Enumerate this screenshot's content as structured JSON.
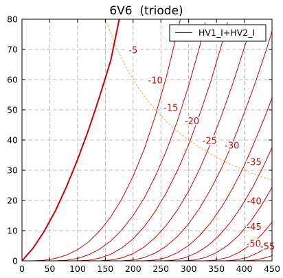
{
  "chart_data": {
    "type": "line",
    "title": "6V6  (triode)",
    "xlabel": "",
    "ylabel": "",
    "xlim": [
      0,
      450
    ],
    "ylim": [
      0,
      80
    ],
    "x_ticks": [
      0,
      50,
      100,
      150,
      200,
      250,
      300,
      350,
      400,
      450
    ],
    "y_ticks": [
      0,
      10,
      20,
      30,
      40,
      50,
      60,
      70,
      80
    ],
    "grid": true,
    "legend": {
      "placement": "top-right",
      "entries": [
        "HV1_I+HV2_I"
      ]
    },
    "colors": {
      "curve": "#cc0000",
      "label": "#cc0000",
      "dissipation": "#e8b040",
      "grid": "#aaaaaa",
      "axis": "#000000"
    },
    "series": [
      {
        "grid_voltage": "0",
        "points": [
          [
            0,
            0
          ],
          [
            20,
            4.2
          ],
          [
            40,
            9.8
          ],
          [
            60,
            16.5
          ],
          [
            80,
            24.5
          ],
          [
            100,
            33.5
          ],
          [
            120,
            43.5
          ],
          [
            140,
            54.5
          ],
          [
            160,
            66.5
          ],
          [
            175,
            80
          ]
        ]
      },
      {
        "grid_voltage": "-5",
        "points": [
          [
            0,
            0
          ],
          [
            20,
            0
          ],
          [
            40,
            0.2
          ],
          [
            60,
            0.8
          ],
          [
            80,
            1.9
          ],
          [
            100,
            3.7
          ],
          [
            120,
            6.3
          ],
          [
            140,
            9.9
          ],
          [
            160,
            14.6
          ],
          [
            180,
            20.6
          ],
          [
            200,
            28
          ],
          [
            220,
            37
          ],
          [
            240,
            48
          ],
          [
            260,
            61
          ],
          [
            280,
            76
          ],
          [
            285,
            80
          ]
        ]
      },
      {
        "grid_voltage": "-10",
        "points": [
          [
            0,
            0
          ],
          [
            60,
            0
          ],
          [
            80,
            0.2
          ],
          [
            100,
            0.8
          ],
          [
            120,
            2
          ],
          [
            140,
            3.9
          ],
          [
            160,
            6.6
          ],
          [
            180,
            10.3
          ],
          [
            200,
            15
          ],
          [
            220,
            20.8
          ],
          [
            240,
            28
          ],
          [
            260,
            36.5
          ],
          [
            280,
            46.5
          ],
          [
            300,
            58
          ],
          [
            320,
            71
          ],
          [
            330,
            79
          ]
        ]
      },
      {
        "grid_voltage": "-15",
        "points": [
          [
            0,
            0
          ],
          [
            100,
            0
          ],
          [
            120,
            0.2
          ],
          [
            140,
            0.9
          ],
          [
            160,
            2.2
          ],
          [
            180,
            4.3
          ],
          [
            200,
            7.3
          ],
          [
            220,
            11.3
          ],
          [
            240,
            16.4
          ],
          [
            260,
            22.6
          ],
          [
            280,
            30
          ],
          [
            300,
            38.5
          ],
          [
            320,
            48.5
          ],
          [
            340,
            59.5
          ],
          [
            360,
            72
          ],
          [
            370,
            79
          ]
        ]
      },
      {
        "grid_voltage": "-20",
        "points": [
          [
            0,
            0
          ],
          [
            140,
            0
          ],
          [
            160,
            0.3
          ],
          [
            180,
            1
          ],
          [
            200,
            2.4
          ],
          [
            220,
            4.6
          ],
          [
            240,
            7.7
          ],
          [
            260,
            11.8
          ],
          [
            280,
            16.9
          ],
          [
            300,
            23.1
          ],
          [
            320,
            30.5
          ],
          [
            340,
            39
          ],
          [
            360,
            48.5
          ],
          [
            380,
            59
          ],
          [
            400,
            70.5
          ],
          [
            412,
            77.5
          ]
        ]
      },
      {
        "grid_voltage": "-25",
        "points": [
          [
            0,
            0
          ],
          [
            180,
            0
          ],
          [
            200,
            0.3
          ],
          [
            220,
            1.1
          ],
          [
            240,
            2.6
          ],
          [
            260,
            4.9
          ],
          [
            280,
            8.1
          ],
          [
            300,
            12.3
          ],
          [
            320,
            17.5
          ],
          [
            340,
            23.8
          ],
          [
            360,
            31
          ],
          [
            380,
            39.5
          ],
          [
            400,
            49
          ],
          [
            420,
            59
          ],
          [
            440,
            70
          ],
          [
            450,
            76
          ]
        ]
      },
      {
        "grid_voltage": "-30",
        "points": [
          [
            0,
            0
          ],
          [
            220,
            0
          ],
          [
            240,
            0.3
          ],
          [
            260,
            1.1
          ],
          [
            280,
            2.7
          ],
          [
            300,
            5.1
          ],
          [
            320,
            8.4
          ],
          [
            340,
            12.7
          ],
          [
            360,
            18
          ],
          [
            380,
            24.3
          ],
          [
            400,
            31.5
          ],
          [
            420,
            40
          ],
          [
            440,
            49
          ],
          [
            450,
            54
          ]
        ]
      },
      {
        "grid_voltage": "-35",
        "points": [
          [
            0,
            0
          ],
          [
            255,
            0
          ],
          [
            275,
            0.3
          ],
          [
            295,
            1.1
          ],
          [
            315,
            2.7
          ],
          [
            335,
            5.1
          ],
          [
            355,
            8.4
          ],
          [
            375,
            12.7
          ],
          [
            395,
            18
          ],
          [
            415,
            24.3
          ],
          [
            435,
            31.5
          ],
          [
            450,
            37.5
          ]
        ]
      },
      {
        "grid_voltage": "-40",
        "points": [
          [
            0,
            0
          ],
          [
            290,
            0
          ],
          [
            310,
            0.3
          ],
          [
            330,
            1.1
          ],
          [
            350,
            2.7
          ],
          [
            370,
            5.1
          ],
          [
            390,
            8.4
          ],
          [
            410,
            12.7
          ],
          [
            430,
            18
          ],
          [
            450,
            24.3
          ]
        ]
      },
      {
        "grid_voltage": "-45",
        "points": [
          [
            0,
            0
          ],
          [
            330,
            0
          ],
          [
            350,
            0.3
          ],
          [
            370,
            1.1
          ],
          [
            390,
            2.7
          ],
          [
            410,
            5.1
          ],
          [
            430,
            8.4
          ],
          [
            450,
            12.7
          ]
        ]
      },
      {
        "grid_voltage": "-50",
        "points": [
          [
            0,
            0
          ],
          [
            365,
            0
          ],
          [
            385,
            0.3
          ],
          [
            405,
            1.1
          ],
          [
            425,
            2.7
          ],
          [
            450,
            5.5
          ]
        ]
      },
      {
        "grid_voltage": "-55",
        "points": [
          [
            0,
            0
          ],
          [
            400,
            0
          ],
          [
            420,
            0.3
          ],
          [
            440,
            1.1
          ],
          [
            450,
            1.7
          ]
        ]
      }
    ],
    "dissipation_curve": {
      "points": [
        [
          150,
          80
        ],
        [
          170,
          70.6
        ],
        [
          190,
          63.2
        ],
        [
          210,
          57.1
        ],
        [
          230,
          52.2
        ],
        [
          250,
          48
        ],
        [
          270,
          44.4
        ],
        [
          290,
          41.4
        ],
        [
          310,
          38.7
        ],
        [
          330,
          36.4
        ],
        [
          350,
          34.3
        ],
        [
          370,
          32.4
        ],
        [
          390,
          30.8
        ],
        [
          410,
          29.3
        ],
        [
          430,
          27.9
        ],
        [
          450,
          26.7
        ]
      ]
    },
    "curve_labels": [
      {
        "text": "-5",
        "x": 200,
        "y": 69.5
      },
      {
        "text": "-10",
        "x": 240,
        "y": 59.5
      },
      {
        "text": "-15",
        "x": 268,
        "y": 50.5
      },
      {
        "text": "-20",
        "x": 306,
        "y": 46
      },
      {
        "text": "-25",
        "x": 338,
        "y": 39.5
      },
      {
        "text": "-30",
        "x": 378,
        "y": 38
      },
      {
        "text": "-35",
        "x": 418,
        "y": 32.5
      },
      {
        "text": "-40",
        "x": 418,
        "y": 19.5
      },
      {
        "text": "-45",
        "x": 418,
        "y": 11
      },
      {
        "text": "-50",
        "x": 417,
        "y": 5.5
      },
      {
        "text": "-55",
        "x": 442,
        "y": 4.5
      }
    ]
  }
}
